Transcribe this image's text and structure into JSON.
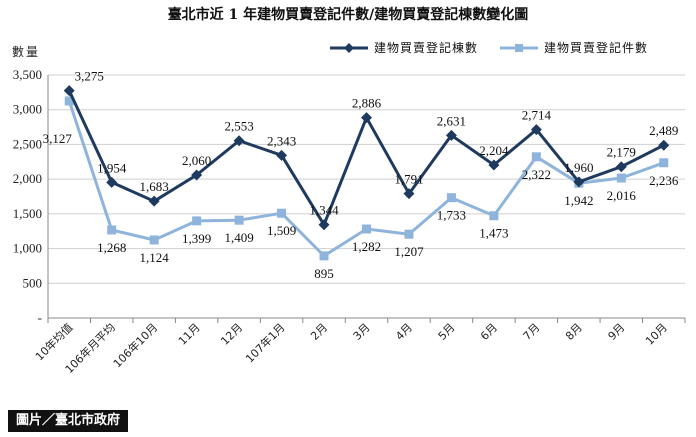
{
  "credit": "圖片／臺北市政府",
  "colors": {
    "dark": "#1f3a5f",
    "light": "#8fb4dc",
    "grid": "#cfcfcf",
    "axis": "#888888"
  },
  "chart_data": {
    "type": "line",
    "title": "臺北市近 1 年建物買賣登記件數/建物買賣登記棟數變化圖",
    "ylabel": "數量",
    "xlabel": "",
    "ylim": [
      0,
      3500
    ],
    "yticks": [
      "-",
      "500",
      "1,000",
      "1,500",
      "2,000",
      "2,500",
      "3,000",
      "3,500"
    ],
    "categories": [
      "10年均值",
      "106年月平均",
      "106年10月",
      "11月",
      "12月",
      "107年1月",
      "2月",
      "3月",
      "4月",
      "5月",
      "6月",
      "7月",
      "8月",
      "9月",
      "10月"
    ],
    "series": [
      {
        "name": "建物買賣登記棟數",
        "marker": "diamond",
        "color": "#1f3a5f",
        "values": [
          3275,
          1954,
          1683,
          2060,
          2553,
          2343,
          1344,
          2886,
          1791,
          2631,
          2204,
          2714,
          1960,
          2179,
          2489
        ],
        "labels": [
          "3,275",
          "1,954",
          "1,683",
          "2,060",
          "2,553",
          "2,343",
          "1,344",
          "2,886",
          "1,791",
          "2,631",
          "2,204",
          "2,714",
          "1,960",
          "2,179",
          "2,489"
        ]
      },
      {
        "name": "建物買賣登記件數",
        "marker": "square",
        "color": "#8fb4dc",
        "values": [
          3127,
          1268,
          1124,
          1399,
          1409,
          1509,
          895,
          1282,
          1207,
          1733,
          1473,
          2322,
          1942,
          2016,
          2236
        ],
        "labels": [
          "3,127",
          "1,268",
          "1,124",
          "1,399",
          "1,409",
          "1,509",
          "895",
          "1,282",
          "1,207",
          "1,733",
          "1,473",
          "2,322",
          "1,942",
          "2,016",
          "2,236"
        ]
      }
    ],
    "grid": true,
    "legend": "top-right"
  }
}
